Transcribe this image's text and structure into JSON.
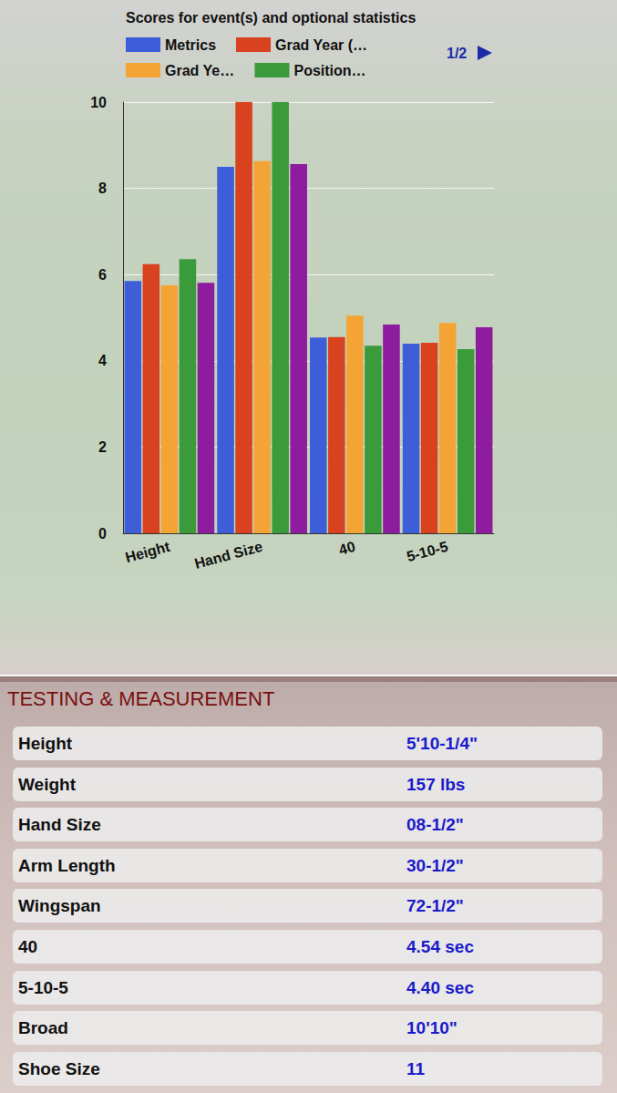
{
  "chart_data": {
    "type": "bar",
    "title": "Scores for event(s) and optional statistics",
    "legend_page": "1/2",
    "categories": [
      "Height",
      "Hand Size",
      "40",
      "5-10-5"
    ],
    "series": [
      {
        "name": "Metrics",
        "color": "#3d5ed8",
        "values": [
          5.85,
          8.5,
          4.54,
          4.4
        ]
      },
      {
        "name": "Grad Year (…",
        "color": "#d8421f",
        "values": [
          6.24,
          10,
          4.55,
          4.42
        ]
      },
      {
        "name": "Grad Ye…",
        "color": "#f4a435",
        "values": [
          5.75,
          8.63,
          5.05,
          4.88
        ]
      },
      {
        "name": "Position…",
        "color": "#3b9b3b",
        "values": [
          6.36,
          10,
          4.35,
          4.27
        ]
      },
      {
        "name": null,
        "color": "#8e1c9e",
        "values": [
          5.81,
          8.56,
          4.84,
          4.78
        ]
      }
    ],
    "ylim": [
      0,
      10
    ],
    "yticks": [
      0,
      2,
      4,
      6,
      8,
      10
    ],
    "grid": true,
    "legend": "top"
  },
  "table": {
    "title": "TESTING & MEASUREMENT",
    "rows": [
      [
        "Height",
        "5'10-1/4\""
      ],
      [
        "Weight",
        "157 lbs"
      ],
      [
        "Hand Size",
        "08-1/2\""
      ],
      [
        "Arm Length",
        "30-1/2\""
      ],
      [
        "Wingspan",
        "72-1/2\""
      ],
      [
        "40",
        "4.54 sec"
      ],
      [
        "5-10-5",
        "4.40 sec"
      ],
      [
        "Broad",
        "10'10\""
      ],
      [
        "Shoe Size",
        "11"
      ]
    ]
  }
}
